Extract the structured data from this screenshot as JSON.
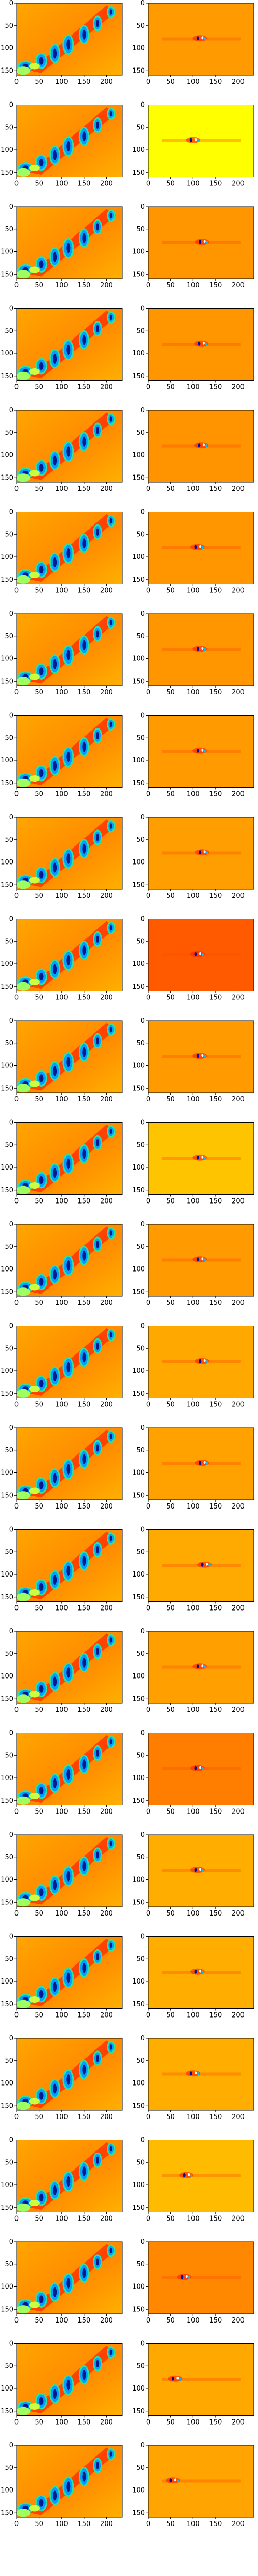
{
  "chart_data": {
    "type": "heatmap",
    "rows": 25,
    "columns_per_row": 2,
    "x_ticks": [
      0,
      50,
      100,
      150,
      200
    ],
    "y_ticks": [
      0,
      50,
      100,
      150
    ],
    "x_range": [
      0,
      235
    ],
    "y_range": [
      0,
      160
    ],
    "grid": false,
    "colormap": "jet",
    "left_panel": "same image repeated in every row",
    "right_panel_backgrounds": [
      "#ff9b00",
      "#ffff00",
      "#ff9600",
      "#ff9600",
      "#ff9400",
      "#ff9600",
      "#ff9600",
      "#ff9a00",
      "#ff9e00",
      "#ff5a00",
      "#ff9a00",
      "#ffc400",
      "#ff9a00",
      "#ffa800",
      "#ffa200",
      "#ffaa00",
      "#ffa000",
      "#ff7e00",
      "#ffae00",
      "#ffae00",
      "#ffae00",
      "#ffbb00",
      "#ff8800",
      "#ffa800",
      "#ffa400"
    ],
    "right_panel_feature_x": [
      115,
      100,
      120,
      118,
      118,
      110,
      115,
      115,
      120,
      110,
      115,
      115,
      115,
      120,
      120,
      125,
      115,
      110,
      110,
      110,
      100,
      85,
      80,
      60,
      55
    ]
  }
}
